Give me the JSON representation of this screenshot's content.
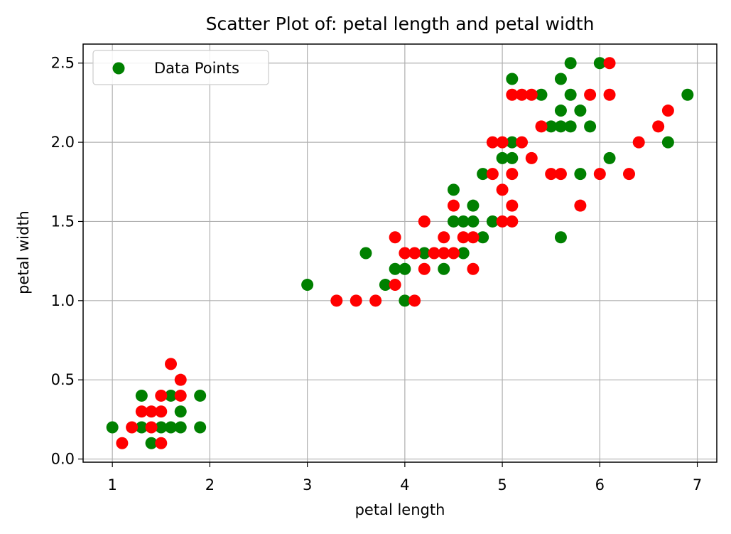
{
  "chart_data": {
    "type": "scatter",
    "title": "Scatter Plot of: petal length and petal width",
    "xlabel": "petal length",
    "ylabel": "petal width",
    "xlim": [
      0.7,
      7.2
    ],
    "ylim": [
      -0.02,
      2.62
    ],
    "xticks": [
      1,
      2,
      3,
      4,
      5,
      6,
      7
    ],
    "xtick_labels": [
      "1",
      "2",
      "3",
      "4",
      "5",
      "6",
      "7"
    ],
    "yticks": [
      0.0,
      0.5,
      1.0,
      1.5,
      2.0,
      2.5
    ],
    "ytick_labels": [
      "0.0",
      "0.5",
      "1.0",
      "1.5",
      "2.0",
      "2.5"
    ],
    "grid": true,
    "legend": {
      "position": "top-left",
      "entries": [
        {
          "label": "Data Points",
          "color": "#008000"
        }
      ]
    },
    "colors": {
      "green": "#008000",
      "red": "#ff0000"
    },
    "series": [
      {
        "color": "#008000",
        "points": [
          [
            1.0,
            0.2
          ],
          [
            1.3,
            0.4
          ],
          [
            1.3,
            0.2
          ],
          [
            1.4,
            0.1
          ],
          [
            1.5,
            0.2
          ],
          [
            1.6,
            0.4
          ],
          [
            1.6,
            0.2
          ],
          [
            1.7,
            0.3
          ],
          [
            1.7,
            0.2
          ],
          [
            1.9,
            0.4
          ],
          [
            1.9,
            0.2
          ],
          [
            3.0,
            1.1
          ],
          [
            3.6,
            1.3
          ],
          [
            3.8,
            1.1
          ],
          [
            3.9,
            1.2
          ],
          [
            4.0,
            1.2
          ],
          [
            4.0,
            1.0
          ],
          [
            4.2,
            1.3
          ],
          [
            4.4,
            1.2
          ],
          [
            4.5,
            1.7
          ],
          [
            4.5,
            1.5
          ],
          [
            4.6,
            1.5
          ],
          [
            4.6,
            1.3
          ],
          [
            4.7,
            1.6
          ],
          [
            4.7,
            1.5
          ],
          [
            4.8,
            1.8
          ],
          [
            4.8,
            1.4
          ],
          [
            4.9,
            1.5
          ],
          [
            5.0,
            1.9
          ],
          [
            5.1,
            2.4
          ],
          [
            5.1,
            2.0
          ],
          [
            5.1,
            1.9
          ],
          [
            5.4,
            2.3
          ],
          [
            5.5,
            2.1
          ],
          [
            5.6,
            2.4
          ],
          [
            5.6,
            2.2
          ],
          [
            5.6,
            2.1
          ],
          [
            5.6,
            1.4
          ],
          [
            5.7,
            2.5
          ],
          [
            5.7,
            2.3
          ],
          [
            5.7,
            2.1
          ],
          [
            5.8,
            2.2
          ],
          [
            5.8,
            1.8
          ],
          [
            5.9,
            2.1
          ],
          [
            6.0,
            2.5
          ],
          [
            6.1,
            1.9
          ],
          [
            6.7,
            2.0
          ],
          [
            6.9,
            2.3
          ]
        ]
      },
      {
        "color": "#ff0000",
        "points": [
          [
            1.1,
            0.1
          ],
          [
            1.2,
            0.2
          ],
          [
            1.3,
            0.3
          ],
          [
            1.4,
            0.3
          ],
          [
            1.4,
            0.2
          ],
          [
            1.5,
            0.4
          ],
          [
            1.5,
            0.3
          ],
          [
            1.5,
            0.1
          ],
          [
            1.6,
            0.6
          ],
          [
            1.7,
            0.5
          ],
          [
            1.7,
            0.4
          ],
          [
            3.3,
            1.0
          ],
          [
            3.5,
            1.0
          ],
          [
            3.7,
            1.0
          ],
          [
            3.9,
            1.4
          ],
          [
            3.9,
            1.1
          ],
          [
            4.0,
            1.3
          ],
          [
            4.1,
            1.3
          ],
          [
            4.1,
            1.0
          ],
          [
            4.2,
            1.5
          ],
          [
            4.2,
            1.2
          ],
          [
            4.3,
            1.3
          ],
          [
            4.4,
            1.4
          ],
          [
            4.4,
            1.3
          ],
          [
            4.5,
            1.6
          ],
          [
            4.5,
            1.3
          ],
          [
            4.6,
            1.4
          ],
          [
            4.7,
            1.4
          ],
          [
            4.7,
            1.2
          ],
          [
            4.9,
            2.0
          ],
          [
            4.9,
            1.8
          ],
          [
            5.0,
            2.0
          ],
          [
            5.0,
            1.7
          ],
          [
            5.0,
            1.5
          ],
          [
            5.1,
            2.3
          ],
          [
            5.1,
            1.8
          ],
          [
            5.1,
            1.6
          ],
          [
            5.1,
            1.5
          ],
          [
            5.2,
            2.3
          ],
          [
            5.2,
            2.0
          ],
          [
            5.3,
            2.3
          ],
          [
            5.3,
            1.9
          ],
          [
            5.4,
            2.1
          ],
          [
            5.5,
            1.8
          ],
          [
            5.6,
            1.8
          ],
          [
            5.8,
            1.6
          ],
          [
            5.9,
            2.3
          ],
          [
            6.0,
            1.8
          ],
          [
            6.1,
            2.5
          ],
          [
            6.1,
            2.3
          ],
          [
            6.3,
            1.8
          ],
          [
            6.4,
            2.0
          ],
          [
            6.6,
            2.1
          ],
          [
            6.7,
            2.2
          ]
        ]
      }
    ]
  }
}
